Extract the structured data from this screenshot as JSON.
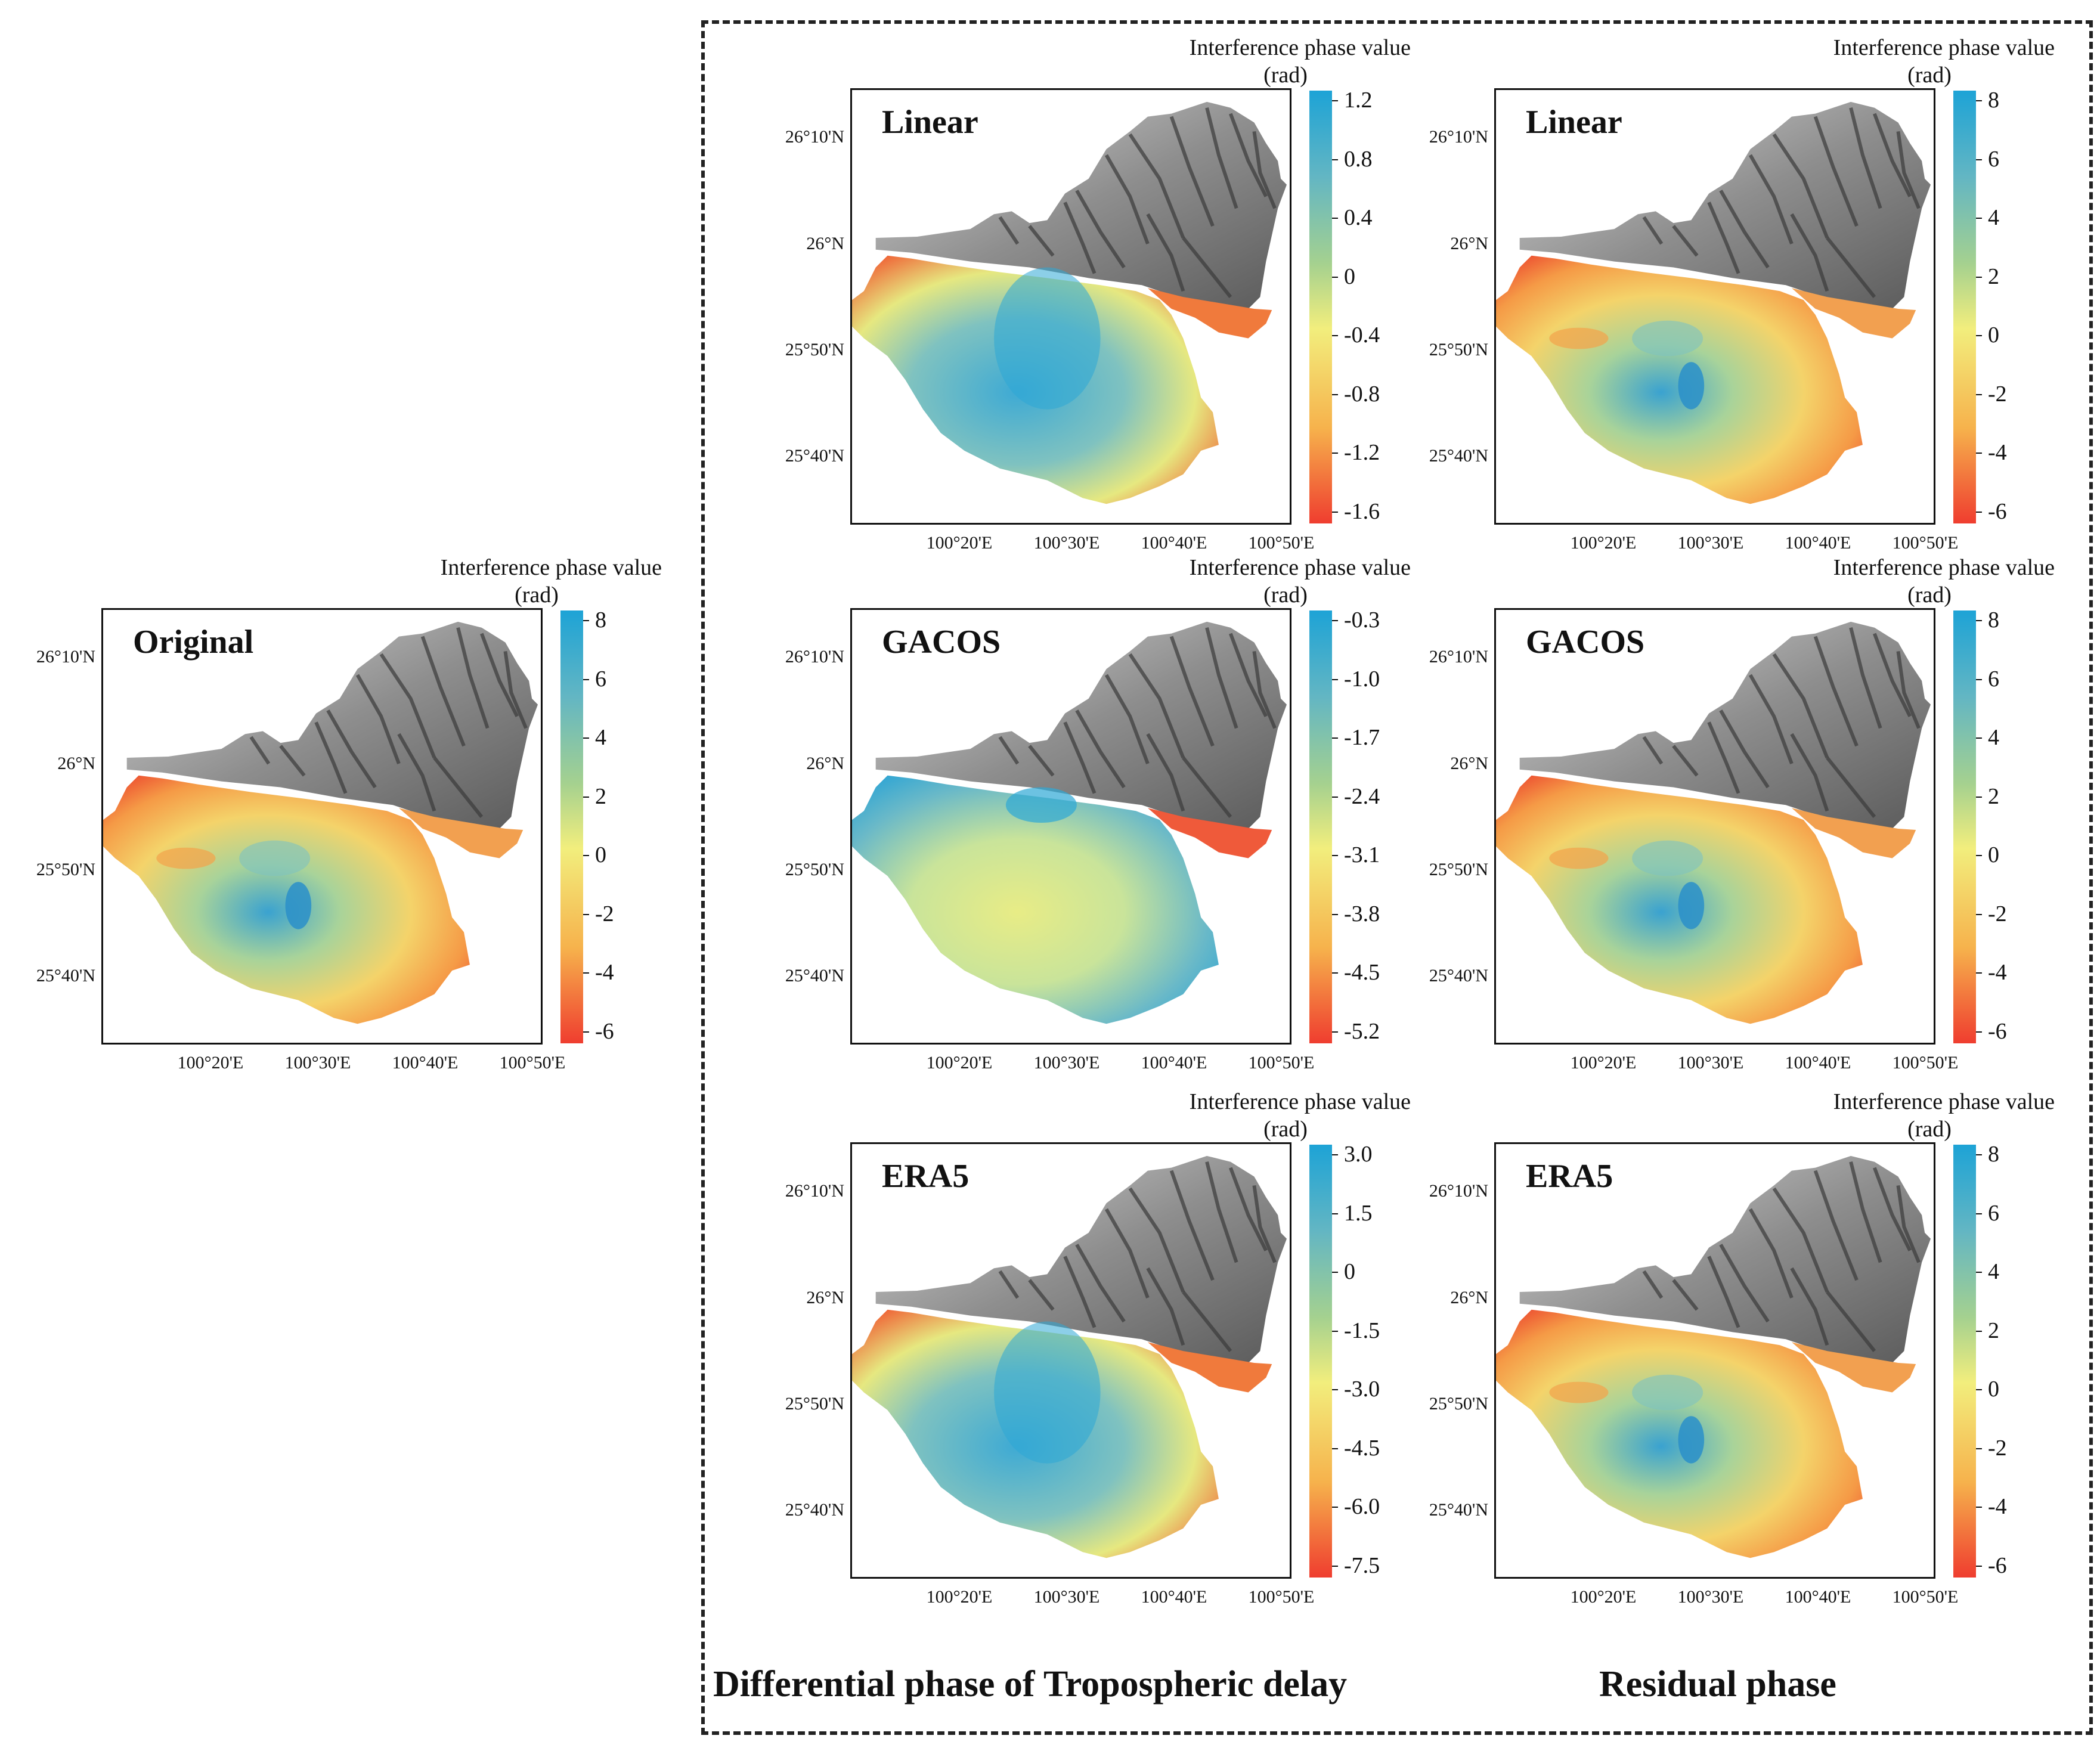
{
  "colorbar_title": "Interference phase value",
  "colorbar_unit": "(rad)",
  "lat_labels": [
    "26°10'N",
    "26°N",
    "25°50'N",
    "25°40'N"
  ],
  "lon_labels": [
    "100°20'E",
    "100°30'E",
    "100°40'E",
    "100°50'E"
  ],
  "colors": {
    "high": "#1da3d6",
    "mid": "#f2ee7d",
    "low": "#ef3d2f",
    "hillshade": "#9a9a9a"
  },
  "panels": [
    {
      "id": "original",
      "label": "Original",
      "ticks": [
        "8",
        "6",
        "4",
        "2",
        "0",
        "-2",
        "-4",
        "-6"
      ]
    },
    {
      "id": "linear-delay",
      "label": "Linear",
      "ticks": [
        "1.2",
        "0.8",
        "0.4",
        "0",
        "-0.4",
        "-0.8",
        "-1.2",
        "-1.6"
      ]
    },
    {
      "id": "linear-residual",
      "label": "Linear",
      "ticks": [
        "8",
        "6",
        "4",
        "2",
        "0",
        "-2",
        "-4",
        "-6"
      ]
    },
    {
      "id": "gacos-delay",
      "label": "GACOS",
      "ticks": [
        "-0.3",
        "-1.0",
        "-1.7",
        "-2.4",
        "-3.1",
        "-3.8",
        "-4.5",
        "-5.2"
      ]
    },
    {
      "id": "gacos-residual",
      "label": "GACOS",
      "ticks": [
        "8",
        "6",
        "4",
        "2",
        "0",
        "-2",
        "-4",
        "-6"
      ]
    },
    {
      "id": "era5-delay",
      "label": "ERA5",
      "ticks": [
        "3.0",
        "1.5",
        "0",
        "-1.5",
        "-3.0",
        "-4.5",
        "-6.0",
        "-7.5"
      ]
    },
    {
      "id": "era5-residual",
      "label": "ERA5",
      "ticks": [
        "8",
        "6",
        "4",
        "2",
        "0",
        "-2",
        "-4",
        "-6"
      ]
    }
  ],
  "bottom_titles": {
    "left": "Differential phase of Tropospheric delay",
    "right": "Residual phase"
  }
}
